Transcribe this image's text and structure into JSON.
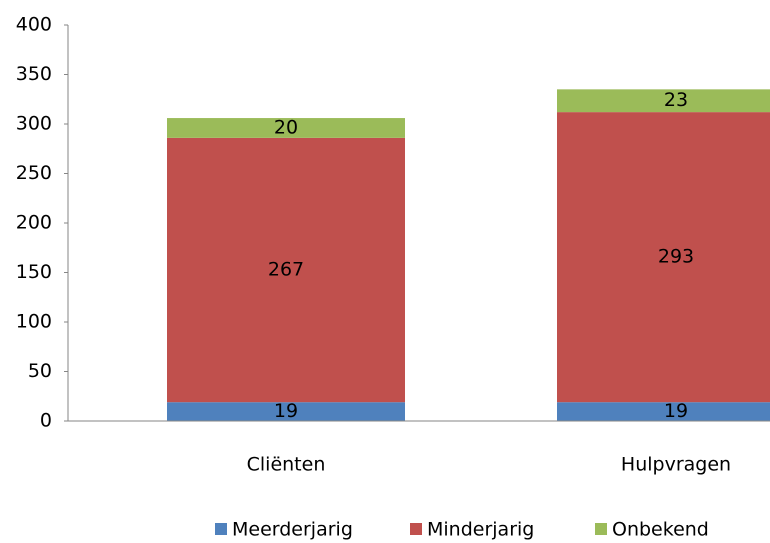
{
  "chart_data": {
    "type": "stacked_bar",
    "categories": [
      "Cliënten",
      "Hulpvragen"
    ],
    "series": [
      {
        "name": "Meerderjarig",
        "color": "#4f81bd",
        "values": [
          19,
          19
        ]
      },
      {
        "name": "Minderjarig",
        "color": "#c0504d",
        "values": [
          267,
          293
        ]
      },
      {
        "name": "Onbekend",
        "color": "#9bbb59",
        "values": [
          20,
          23
        ]
      }
    ],
    "ylim": [
      0,
      400
    ],
    "yticks": [
      0,
      50,
      100,
      150,
      200,
      250,
      300,
      350,
      400
    ],
    "grid": false,
    "legend": "bottom"
  }
}
